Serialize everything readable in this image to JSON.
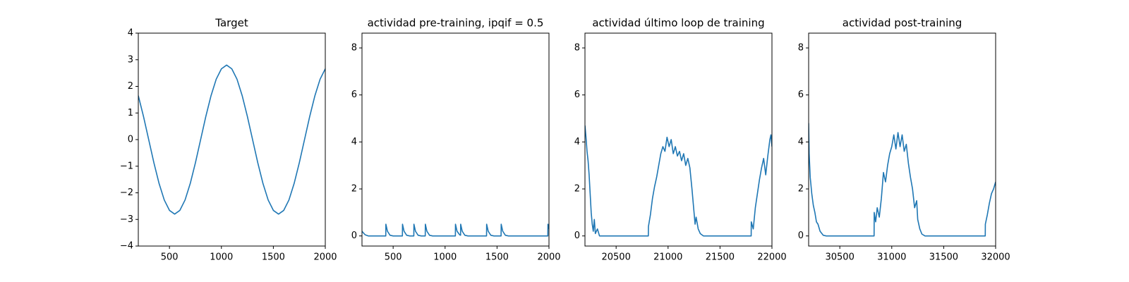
{
  "chart_data": [
    {
      "type": "line",
      "title": "Target",
      "color": "#1f77b4",
      "grid": false,
      "x": [
        200,
        250,
        300,
        350,
        400,
        450,
        500,
        550,
        600,
        650,
        700,
        750,
        800,
        850,
        900,
        950,
        1000,
        1050,
        1100,
        1150,
        1200,
        1250,
        1300,
        1350,
        1400,
        1450,
        1500,
        1550,
        1600,
        1650,
        1700,
        1750,
        1800,
        1850,
        1900,
        1950,
        2000
      ],
      "values": [
        1.65,
        0.87,
        0,
        -0.87,
        -1.65,
        -2.27,
        -2.66,
        -2.8,
        -2.66,
        -2.27,
        -1.65,
        -0.87,
        0,
        0.87,
        1.65,
        2.27,
        2.66,
        2.8,
        2.66,
        2.27,
        1.65,
        0.87,
        0,
        -0.87,
        -1.65,
        -2.27,
        -2.66,
        -2.8,
        -2.66,
        -2.27,
        -1.65,
        -0.87,
        0,
        0.87,
        1.65,
        2.27,
        2.66
      ],
      "xlim": [
        200,
        2000
      ],
      "xticks": [
        500,
        1000,
        1500,
        2000
      ],
      "ylim": [
        -4,
        4
      ],
      "yticks": [
        {
          "value": -4,
          "label": "−4"
        },
        {
          "value": -3,
          "label": "−3"
        },
        {
          "value": -2,
          "label": "−2"
        },
        {
          "value": -1,
          "label": "−1"
        },
        0,
        1,
        2,
        3,
        4
      ]
    },
    {
      "type": "line",
      "title": "actividad pre-training, ipqif = 0.5",
      "color": "#1f77b4",
      "grid": false,
      "x": [
        200,
        230,
        260,
        429,
        430,
        445,
        470,
        500,
        589,
        590,
        605,
        630,
        660,
        699,
        700,
        715,
        740,
        770,
        809,
        810,
        825,
        850,
        880,
        1099,
        1100,
        1115,
        1140,
        1149,
        1150,
        1165,
        1190,
        1220,
        1399,
        1400,
        1415,
        1440,
        1470,
        1539,
        1540,
        1555,
        1580,
        1610,
        1989,
        1990,
        2000
      ],
      "values": [
        0.2,
        0.05,
        0,
        0,
        0.5,
        0.2,
        0.03,
        0,
        0,
        0.5,
        0.2,
        0.03,
        0,
        0,
        0.5,
        0.2,
        0.03,
        0,
        0,
        0.5,
        0.2,
        0.03,
        0,
        0,
        0.5,
        0.2,
        0.05,
        0.03,
        0.5,
        0.2,
        0.03,
        0,
        0,
        0.5,
        0.2,
        0.03,
        0,
        0,
        0.5,
        0.2,
        0.03,
        0,
        0,
        0.5,
        0.3
      ],
      "xlim": [
        200,
        2000
      ],
      "xticks": [
        500,
        1000,
        1500,
        2000
      ],
      "ylim": [
        -0.43,
        8.63
      ],
      "yticks": [
        0,
        2,
        4,
        6,
        8
      ]
    },
    {
      "type": "line",
      "title": "actividad último loop de training",
      "color": "#1f77b4",
      "grid": false,
      "x": [
        20200,
        20210,
        20220,
        20230,
        20240,
        20250,
        20260,
        20270,
        20280,
        20290,
        20300,
        20320,
        20340,
        20810,
        20811,
        20830,
        20850,
        20870,
        20890,
        20910,
        20930,
        20950,
        20970,
        20990,
        21010,
        21030,
        21050,
        21070,
        21090,
        21110,
        21130,
        21150,
        21170,
        21190,
        21210,
        21230,
        21250,
        21260,
        21270,
        21290,
        21310,
        21340,
        21800,
        21801,
        21820,
        21840,
        21860,
        21880,
        21900,
        21920,
        21940,
        21960,
        21980,
        21990,
        22000
      ],
      "values": [
        4.7,
        4.2,
        3.6,
        3.2,
        2.6,
        1.8,
        1.0,
        0.5,
        0.2,
        0.7,
        0.1,
        0.3,
        0,
        0,
        0.4,
        0.9,
        1.6,
        2.1,
        2.5,
        3.0,
        3.5,
        3.8,
        3.6,
        4.2,
        3.8,
        4.1,
        3.5,
        3.8,
        3.4,
        3.6,
        3.2,
        3.5,
        3.0,
        3.3,
        2.9,
        2.0,
        1.0,
        0.5,
        0.8,
        0.3,
        0.1,
        0,
        0,
        0.6,
        0.3,
        1.2,
        1.8,
        2.4,
        2.9,
        3.3,
        2.6,
        3.4,
        4.1,
        4.3,
        3.8
      ],
      "xlim": [
        20200,
        22000
      ],
      "xticks": [
        20500,
        21000,
        21500,
        22000
      ],
      "ylim": [
        -0.43,
        8.63
      ],
      "yticks": [
        0,
        2,
        4,
        6,
        8
      ]
    },
    {
      "type": "line",
      "title": "actividad post-training",
      "color": "#1f77b4",
      "grid": false,
      "x": [
        30200,
        30205,
        30215,
        30230,
        30245,
        30260,
        30275,
        30290,
        30310,
        30340,
        30370,
        30830,
        30831,
        30845,
        30860,
        30880,
        30900,
        30920,
        30940,
        30960,
        30980,
        31000,
        31020,
        31040,
        31060,
        31080,
        31100,
        31120,
        31140,
        31160,
        31180,
        31200,
        31220,
        31240,
        31250,
        31270,
        31290,
        31320,
        31900,
        31901,
        31920,
        31940,
        31960,
        31980,
        32000
      ],
      "values": [
        4.8,
        3.5,
        2.5,
        1.8,
        1.3,
        1.0,
        0.6,
        0.5,
        0.2,
        0.03,
        0,
        0,
        1.0,
        0.6,
        1.2,
        0.8,
        1.6,
        2.7,
        2.3,
        3.0,
        3.5,
        3.8,
        4.3,
        3.7,
        4.4,
        3.8,
        4.3,
        3.6,
        3.9,
        3.1,
        2.5,
        2.0,
        1.2,
        1.5,
        0.7,
        0.3,
        0.08,
        0,
        0,
        0.5,
        0.9,
        1.4,
        1.8,
        2.0,
        2.3
      ],
      "xlim": [
        30200,
        32000
      ],
      "xticks": [
        30500,
        31000,
        31500,
        32000
      ],
      "ylim": [
        -0.43,
        8.63
      ],
      "yticks": [
        0,
        2,
        4,
        6,
        8
      ]
    }
  ]
}
